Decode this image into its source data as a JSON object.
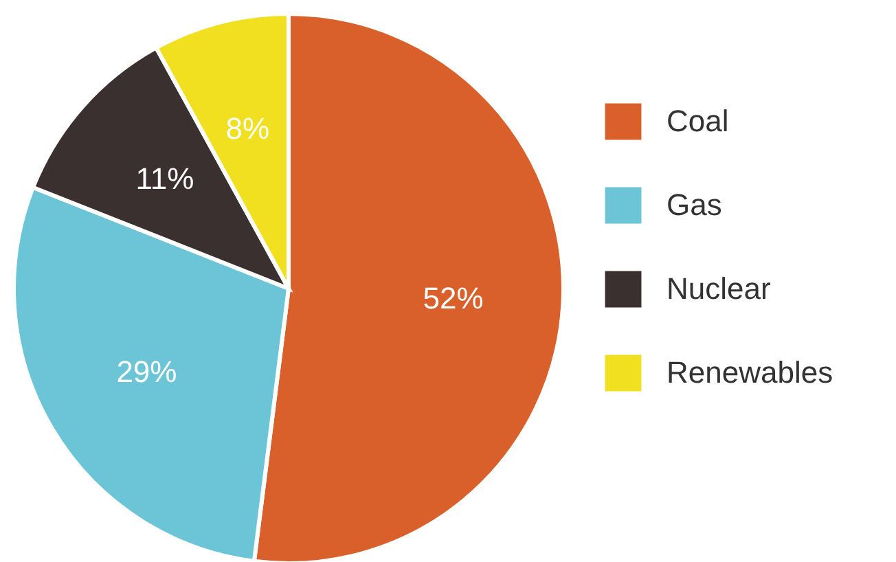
{
  "chart_data": {
    "type": "pie",
    "categories": [
      "Coal",
      "Gas",
      "Nuclear",
      "Renewables"
    ],
    "values": [
      52,
      29,
      11,
      8
    ],
    "colors": [
      "#d9602a",
      "#6cc5d6",
      "#3a3030",
      "#f0e020"
    ],
    "value_labels": [
      "52%",
      "29%",
      "11%",
      "8%"
    ],
    "legend": "right"
  }
}
